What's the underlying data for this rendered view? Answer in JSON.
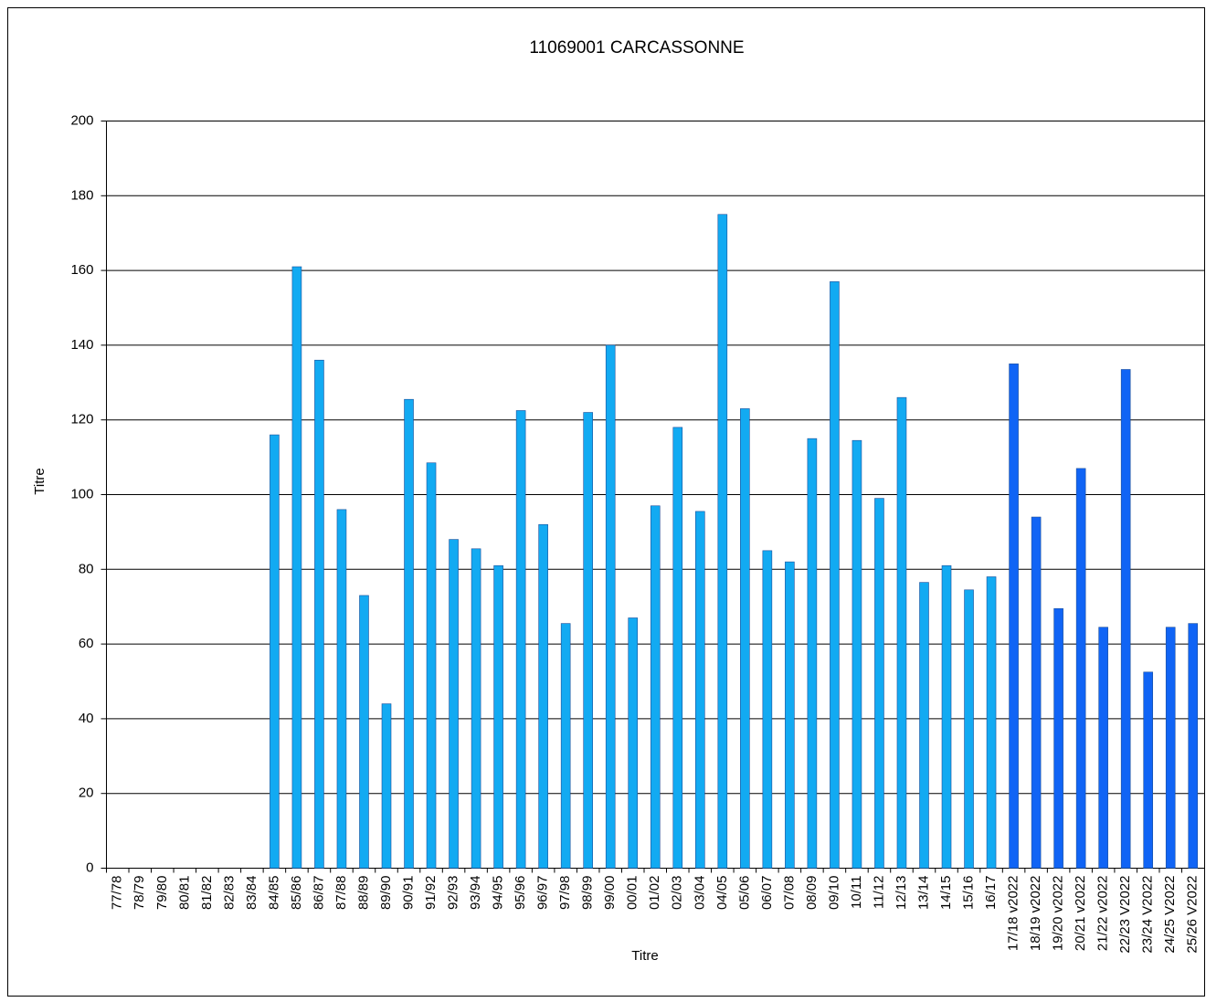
{
  "chart_data": {
    "type": "bar",
    "title": "11069001 CARCASSONNE",
    "x_label": "Titre",
    "y_label": "Titre",
    "categories": [
      "77/78",
      "78/79",
      "79/80",
      "80/81",
      "81/82",
      "82/83",
      "83/84",
      "84/85",
      "85/86",
      "86/87",
      "87/88",
      "88/89",
      "89/90",
      "90/91",
      "91/92",
      "92/93",
      "93/94",
      "94/95",
      "95/96",
      "96/97",
      "97/98",
      "98/99",
      "99/00",
      "00/01",
      "01/02",
      "02/03",
      "03/04",
      "04/05",
      "05/06",
      "06/07",
      "07/08",
      "08/09",
      "09/10",
      "10/11",
      "11/12",
      "12/13",
      "13/14",
      "14/15",
      "15/16",
      "16/17",
      "17/18 v2022",
      "18/19 v2022",
      "19/20 v2022",
      "20/21 v2022",
      "21/22 v2022",
      "22/23 V2022",
      "23/24 V2022",
      "24/25 V2022",
      "25/26 V2022"
    ],
    "values": [
      null,
      null,
      null,
      null,
      null,
      null,
      null,
      116,
      161,
      136,
      96,
      73,
      44,
      125.5,
      108.5,
      88,
      85.5,
      81,
      122.5,
      92,
      65.5,
      122,
      140,
      67,
      97,
      118,
      95.5,
      175,
      123,
      85,
      82,
      115,
      157,
      114.5,
      99,
      126,
      76.5,
      81,
      74.5,
      78,
      135,
      94,
      69.5,
      107,
      64.5,
      133.5,
      52.5,
      64.5,
      65.5
    ],
    "colors": [
      "#12aaf2",
      "#12aaf2",
      "#12aaf2",
      "#12aaf2",
      "#12aaf2",
      "#12aaf2",
      "#12aaf2",
      "#12aaf2",
      "#12aaf2",
      "#12aaf2",
      "#12aaf2",
      "#12aaf2",
      "#12aaf2",
      "#12aaf2",
      "#12aaf2",
      "#12aaf2",
      "#12aaf2",
      "#12aaf2",
      "#12aaf2",
      "#12aaf2",
      "#12aaf2",
      "#12aaf2",
      "#12aaf2",
      "#12aaf2",
      "#12aaf2",
      "#12aaf2",
      "#12aaf2",
      "#12aaf2",
      "#12aaf2",
      "#12aaf2",
      "#12aaf2",
      "#12aaf2",
      "#12aaf2",
      "#12aaf2",
      "#12aaf2",
      "#12aaf2",
      "#12aaf2",
      "#12aaf2",
      "#12aaf2",
      "#12aaf2",
      "#1064f5",
      "#1064f5",
      "#1064f5",
      "#1064f5",
      "#1064f5",
      "#1064f5",
      "#1064f5",
      "#1064f5",
      "#1064f5"
    ],
    "ylim": [
      0,
      200
    ],
    "yticks": [
      0,
      20,
      40,
      60,
      80,
      100,
      120,
      140,
      160,
      180,
      200
    ],
    "grid": true
  }
}
